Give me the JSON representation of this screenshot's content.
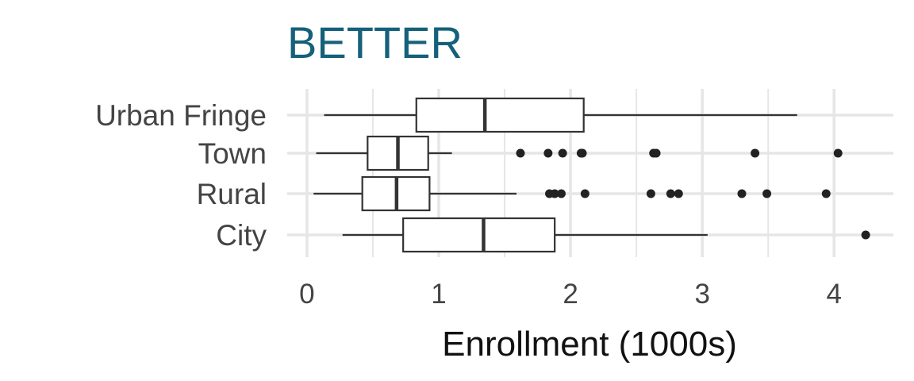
{
  "chart_data": {
    "type": "boxplot",
    "orientation": "horizontal",
    "title": "BETTER",
    "xlabel": "Enrollment (1000s)",
    "ylabel": "",
    "xlim": [
      -0.15,
      4.45
    ],
    "x_ticks": [
      0,
      1,
      2,
      3,
      4
    ],
    "categories": [
      "City",
      "Rural",
      "Town",
      "Urban Fringe"
    ],
    "boxes": [
      {
        "category": "City",
        "whisker_low": 0.27,
        "q1": 0.73,
        "median": 1.34,
        "q3": 1.88,
        "whisker_high": 3.04,
        "outliers": [
          4.24
        ]
      },
      {
        "category": "Rural",
        "whisker_low": 0.05,
        "q1": 0.42,
        "median": 0.68,
        "q3": 0.93,
        "whisker_high": 1.59,
        "outliers": [
          1.84,
          1.88,
          1.93,
          2.11,
          2.61,
          2.76,
          2.82,
          3.3,
          3.49,
          3.94
        ]
      },
      {
        "category": "Town",
        "whisker_low": 0.07,
        "q1": 0.46,
        "median": 0.69,
        "q3": 0.92,
        "whisker_high": 1.1,
        "outliers": [
          1.62,
          1.83,
          1.94,
          2.08,
          2.09,
          2.63,
          2.65,
          3.4,
          4.03
        ]
      },
      {
        "category": "Urban Fringe",
        "whisker_low": 0.13,
        "q1": 0.83,
        "median": 1.35,
        "q3": 2.1,
        "whisker_high": 3.72,
        "outliers": []
      }
    ],
    "grid": true,
    "legend": "none",
    "colors": {
      "title": "#15607a",
      "box_fill": "#ffffff",
      "box_stroke": "#333333",
      "grid": "#e6e6e6",
      "outlier": "#222222"
    }
  }
}
